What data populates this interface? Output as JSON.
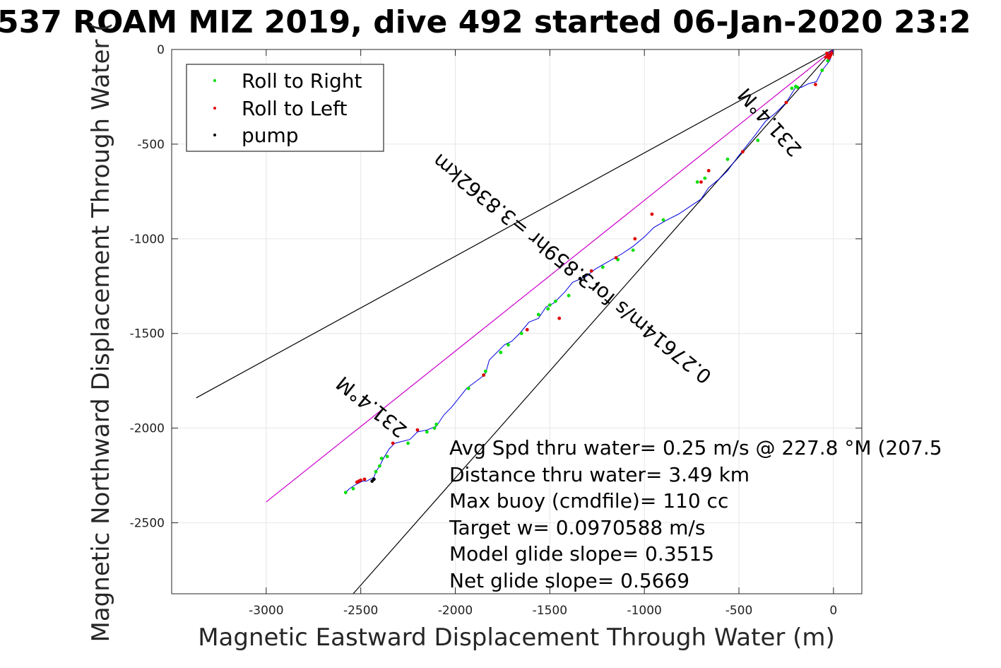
{
  "chart_data": {
    "type": "line",
    "title": "537 ROAM MIZ 2019, dive 492 started 06-Jan-2020 23:2",
    "xlabel": "Magnetic Eastward Displacement Through Water (m)",
    "ylabel": "Magnetic Northward Displacement Through Water (",
    "xlim": [
      -3500,
      150
    ],
    "ylim": [
      -2875,
      0
    ],
    "xticks": [
      -3000,
      -2500,
      -2000,
      -1500,
      -1000,
      -500,
      0
    ],
    "yticks": [
      0,
      -500,
      -1000,
      -1500,
      -2000,
      -2500
    ],
    "grid": true,
    "legend_position": "top-left",
    "legend": [
      {
        "label": "Roll to Right",
        "color": "#00e000"
      },
      {
        "label": "Roll to Left",
        "color": "#e00000"
      },
      {
        "label": "pump",
        "color": "#000000"
      }
    ],
    "cone_lines": [
      {
        "name": "upper-bound",
        "x": [
          0,
          -3370
        ],
        "y": [
          0,
          -1840
        ],
        "color": "#000000"
      },
      {
        "name": "lower-bound",
        "x": [
          0,
          -2540
        ],
        "y": [
          0,
          -2875
        ],
        "color": "#000000"
      },
      {
        "name": "mean-heading",
        "x": [
          0,
          -3000
        ],
        "y": [
          0,
          -2390
        ],
        "color": "#cc00cc"
      }
    ],
    "track": {
      "color": "#0000dd",
      "x": [
        0,
        -20,
        -60,
        -90,
        -130,
        -170,
        -200,
        -250,
        -300,
        -360,
        -420,
        -500,
        -560,
        -600,
        -660,
        -700,
        -760,
        -820,
        -880,
        -950,
        -1000,
        -1060,
        -1120,
        -1190,
        -1260,
        -1310,
        -1380,
        -1420,
        -1480,
        -1520,
        -1560,
        -1610,
        -1660,
        -1700,
        -1740,
        -1780,
        -1820,
        -1840,
        -1860,
        -1900,
        -1940,
        -1980,
        -2020,
        -2060,
        -2100,
        -2150,
        -2200,
        -2240,
        -2280,
        -2320,
        -2350,
        -2380,
        -2400,
        -2420,
        -2430,
        -2450,
        -2470,
        -2490,
        -2510,
        -2530,
        -2560,
        -2580
      ],
      "y": [
        0,
        -60,
        -110,
        -170,
        -180,
        -200,
        -200,
        -280,
        -330,
        -380,
        -460,
        -560,
        -640,
        -680,
        -730,
        -790,
        -830,
        -870,
        -900,
        -940,
        -990,
        -1040,
        -1080,
        -1120,
        -1160,
        -1200,
        -1230,
        -1280,
        -1340,
        -1360,
        -1420,
        -1440,
        -1500,
        -1540,
        -1560,
        -1600,
        -1640,
        -1710,
        -1730,
        -1760,
        -1790,
        -1840,
        -1890,
        -1930,
        -1990,
        -2010,
        -2020,
        -2060,
        -2070,
        -2080,
        -2110,
        -2160,
        -2200,
        -2230,
        -2260,
        -2270,
        -2280,
        -2280,
        -2290,
        -2300,
        -2320,
        -2340
      ]
    },
    "roll_right_points": {
      "x": [
        -30,
        -60,
        -190,
        -200,
        -220,
        -400,
        -560,
        -680,
        -720,
        -900,
        -1060,
        -1140,
        -1220,
        -1320,
        -1400,
        -1470,
        -1500,
        -1510,
        -1560,
        -1650,
        -1720,
        -1760,
        -1840,
        -1850,
        -1930,
        -2100,
        -2110,
        -2150,
        -2250,
        -2360,
        -2390,
        -2400,
        -2420,
        -2540,
        -2580
      ],
      "y": [
        -60,
        -110,
        -200,
        -195,
        -205,
        -480,
        -580,
        -680,
        -700,
        -900,
        -1060,
        -1110,
        -1150,
        -1200,
        -1300,
        -1330,
        -1350,
        -1370,
        -1400,
        -1500,
        -1560,
        -1600,
        -1700,
        -1720,
        -1790,
        -1980,
        -2000,
        -2020,
        -2080,
        -2150,
        -2160,
        -2200,
        -2230,
        -2320,
        -2340
      ]
    },
    "roll_left_points": {
      "x": [
        -10,
        -15,
        -20,
        -25,
        -30,
        -35,
        -40,
        -95,
        -250,
        -480,
        -660,
        -700,
        -960,
        -1050,
        -1150,
        -1280,
        -1450,
        -1620,
        -1850,
        -2200,
        -2330,
        -2480,
        -2500,
        -2510,
        -2520
      ],
      "y": [
        -20,
        -30,
        -40,
        -45,
        -30,
        -20,
        -40,
        -185,
        -280,
        -540,
        -640,
        -700,
        -870,
        -1000,
        -1100,
        -1170,
        -1420,
        -1480,
        -1720,
        -2010,
        -2080,
        -2270,
        -2275,
        -2280,
        -2285
      ]
    },
    "pump_points": {
      "x": [
        -1250,
        -1320,
        -1340,
        -2430,
        -2440
      ],
      "y": [
        -1240,
        -1200,
        -1210,
        -2270,
        -2280
      ]
    },
    "line_annotations": [
      {
        "text": "231.4°M",
        "x": -2420,
        "y": -1860,
        "rotate": -141
      },
      {
        "text": "0.27614m/s for3.859hr =3.8362km",
        "x": -1360,
        "y": -1130,
        "rotate": -141
      },
      {
        "text": "231.4°M",
        "x": -310,
        "y": -360,
        "rotate": -132
      }
    ],
    "stats": [
      "Avg Spd thru water=  0.25 m/s @ 227.8 °M (207.5",
      "Distance thru water=  3.49 km",
      "Max buoy (cmdfile)= 110 cc",
      "Target w= 0.0970588 m/s",
      "Model glide slope= 0.3515",
      "Net glide slope= 0.5669"
    ]
  }
}
